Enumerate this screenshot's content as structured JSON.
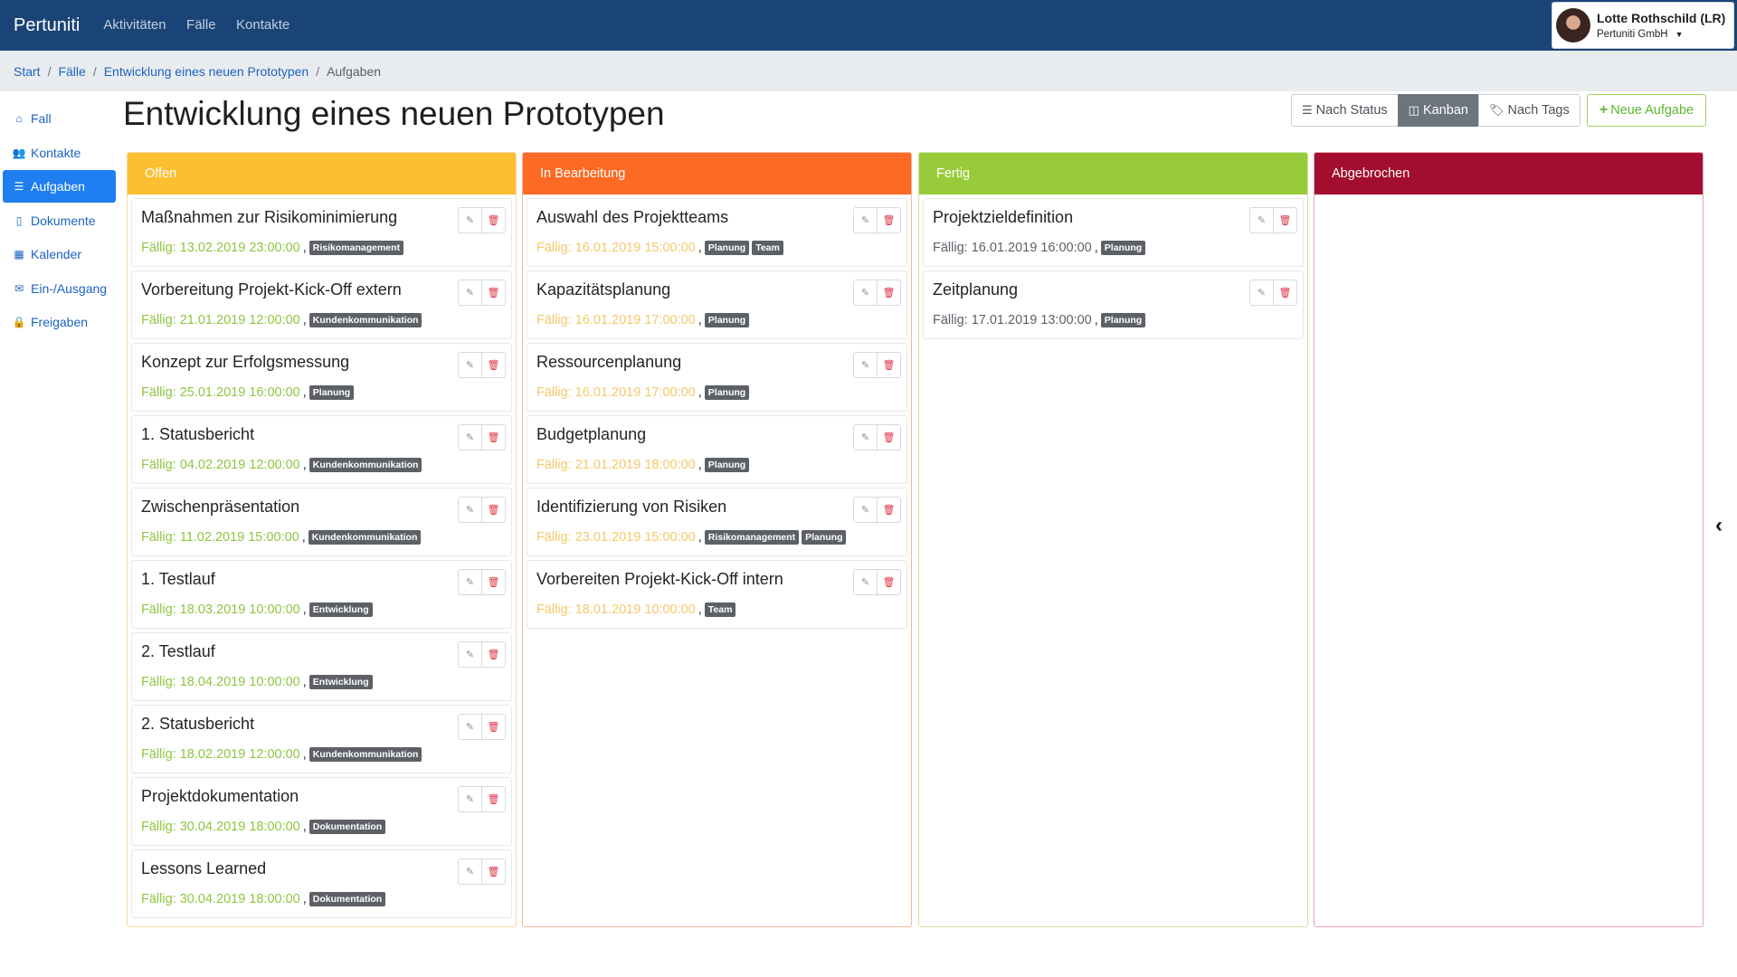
{
  "app": {
    "brand": "Pertuniti",
    "nav": [
      "Aktivitäten",
      "Fälle",
      "Kontakte"
    ]
  },
  "user": {
    "name": "Lotte Rothschild (LR)",
    "org": "Pertuniti GmbH"
  },
  "breadcrumb": {
    "items": [
      "Start",
      "Fälle",
      "Entwicklung eines neuen Prototypen"
    ],
    "current": "Aufgaben"
  },
  "sidebar": {
    "items": [
      {
        "label": "Fall",
        "icon": "home-icon"
      },
      {
        "label": "Kontakte",
        "icon": "users-icon"
      },
      {
        "label": "Aufgaben",
        "icon": "list-icon",
        "active": true
      },
      {
        "label": "Dokumente",
        "icon": "document-icon"
      },
      {
        "label": "Kalender",
        "icon": "calendar-icon"
      },
      {
        "label": "Ein-/Ausgang",
        "icon": "envelope-icon"
      },
      {
        "label": "Freigaben",
        "icon": "lock-icon"
      }
    ]
  },
  "page": {
    "title": "Entwicklung eines neuen Prototypen"
  },
  "toolbar": {
    "by_status": "Nach Status",
    "kanban": "Kanban",
    "by_tags": "Nach Tags",
    "new_task": "Neue Aufgabe",
    "active_view": "Kanban"
  },
  "colors": {
    "offen": "#fdbf30",
    "bearbeitung": "#fd6a23",
    "fertig": "#98cb3a",
    "abgebrochen": "#a30e2e",
    "accent": "#1f7ef0"
  },
  "columns": [
    {
      "title": "Offen",
      "cards": [
        {
          "title": "Maßnahmen zur Risikominimierung",
          "due": "Fällig: 13.02.2019 23:00:00",
          "tags": [
            "Risikomanagement"
          ]
        },
        {
          "title": "Vorbereitung Projekt-Kick-Off extern",
          "due": "Fällig: 21.01.2019 12:00:00",
          "tags": [
            "Kundenkommunikation"
          ]
        },
        {
          "title": "Konzept zur Erfolgsmessung",
          "due": "Fällig: 25.01.2019 16:00:00",
          "tags": [
            "Planung"
          ]
        },
        {
          "title": "1. Statusbericht",
          "due": "Fällig: 04.02.2019 12:00:00",
          "tags": [
            "Kundenkommunikation"
          ]
        },
        {
          "title": "Zwischenpräsentation",
          "due": "Fällig: 11.02.2019 15:00:00",
          "tags": [
            "Kundenkommunikation"
          ]
        },
        {
          "title": "1. Testlauf",
          "due": "Fällig: 18.03.2019 10:00:00",
          "tags": [
            "Entwicklung"
          ]
        },
        {
          "title": "2. Testlauf",
          "due": "Fällig: 18.04.2019 10:00:00",
          "tags": [
            "Entwicklung"
          ]
        },
        {
          "title": "2. Statusbericht",
          "due": "Fällig: 18.02.2019 12:00:00",
          "tags": [
            "Kundenkommunikation"
          ]
        },
        {
          "title": "Projektdokumentation",
          "due": "Fällig: 30.04.2019 18:00:00",
          "tags": [
            "Dokumentation"
          ]
        },
        {
          "title": "Lessons Learned",
          "due": "Fällig: 30.04.2019 18:00:00",
          "tags": [
            "Dokumentation"
          ]
        }
      ]
    },
    {
      "title": "In Bearbeitung",
      "cards": [
        {
          "title": "Auswahl des Projektteams",
          "due": "Fällig: 16.01.2019 15:00:00",
          "tags": [
            "Planung",
            "Team"
          ]
        },
        {
          "title": "Kapazitätsplanung",
          "due": "Fällig: 16.01.2019 17:00:00",
          "tags": [
            "Planung"
          ]
        },
        {
          "title": "Ressourcenplanung",
          "due": "Fällig: 16.01.2019 17:00:00",
          "tags": [
            "Planung"
          ]
        },
        {
          "title": "Budgetplanung",
          "due": "Fällig: 21.01.2019 18:00:00",
          "tags": [
            "Planung"
          ]
        },
        {
          "title": "Identifizierung von Risiken",
          "due": "Fällig: 23.01.2019 15:00:00",
          "tags": [
            "Risikomanagement",
            "Planung"
          ]
        },
        {
          "title": "Vorbereiten Projekt-Kick-Off intern",
          "due": "Fällig: 18.01.2019 10:00:00",
          "tags": [
            "Team"
          ]
        }
      ]
    },
    {
      "title": "Fertig",
      "cards": [
        {
          "title": "Projektzieldefinition",
          "due": "Fällig: 16.01.2019 16:00:00",
          "tags": [
            "Planung"
          ]
        },
        {
          "title": "Zeitplanung",
          "due": "Fällig: 17.01.2019 13:00:00",
          "tags": [
            "Planung"
          ]
        }
      ]
    },
    {
      "title": "Abgebrochen",
      "cards": []
    }
  ]
}
